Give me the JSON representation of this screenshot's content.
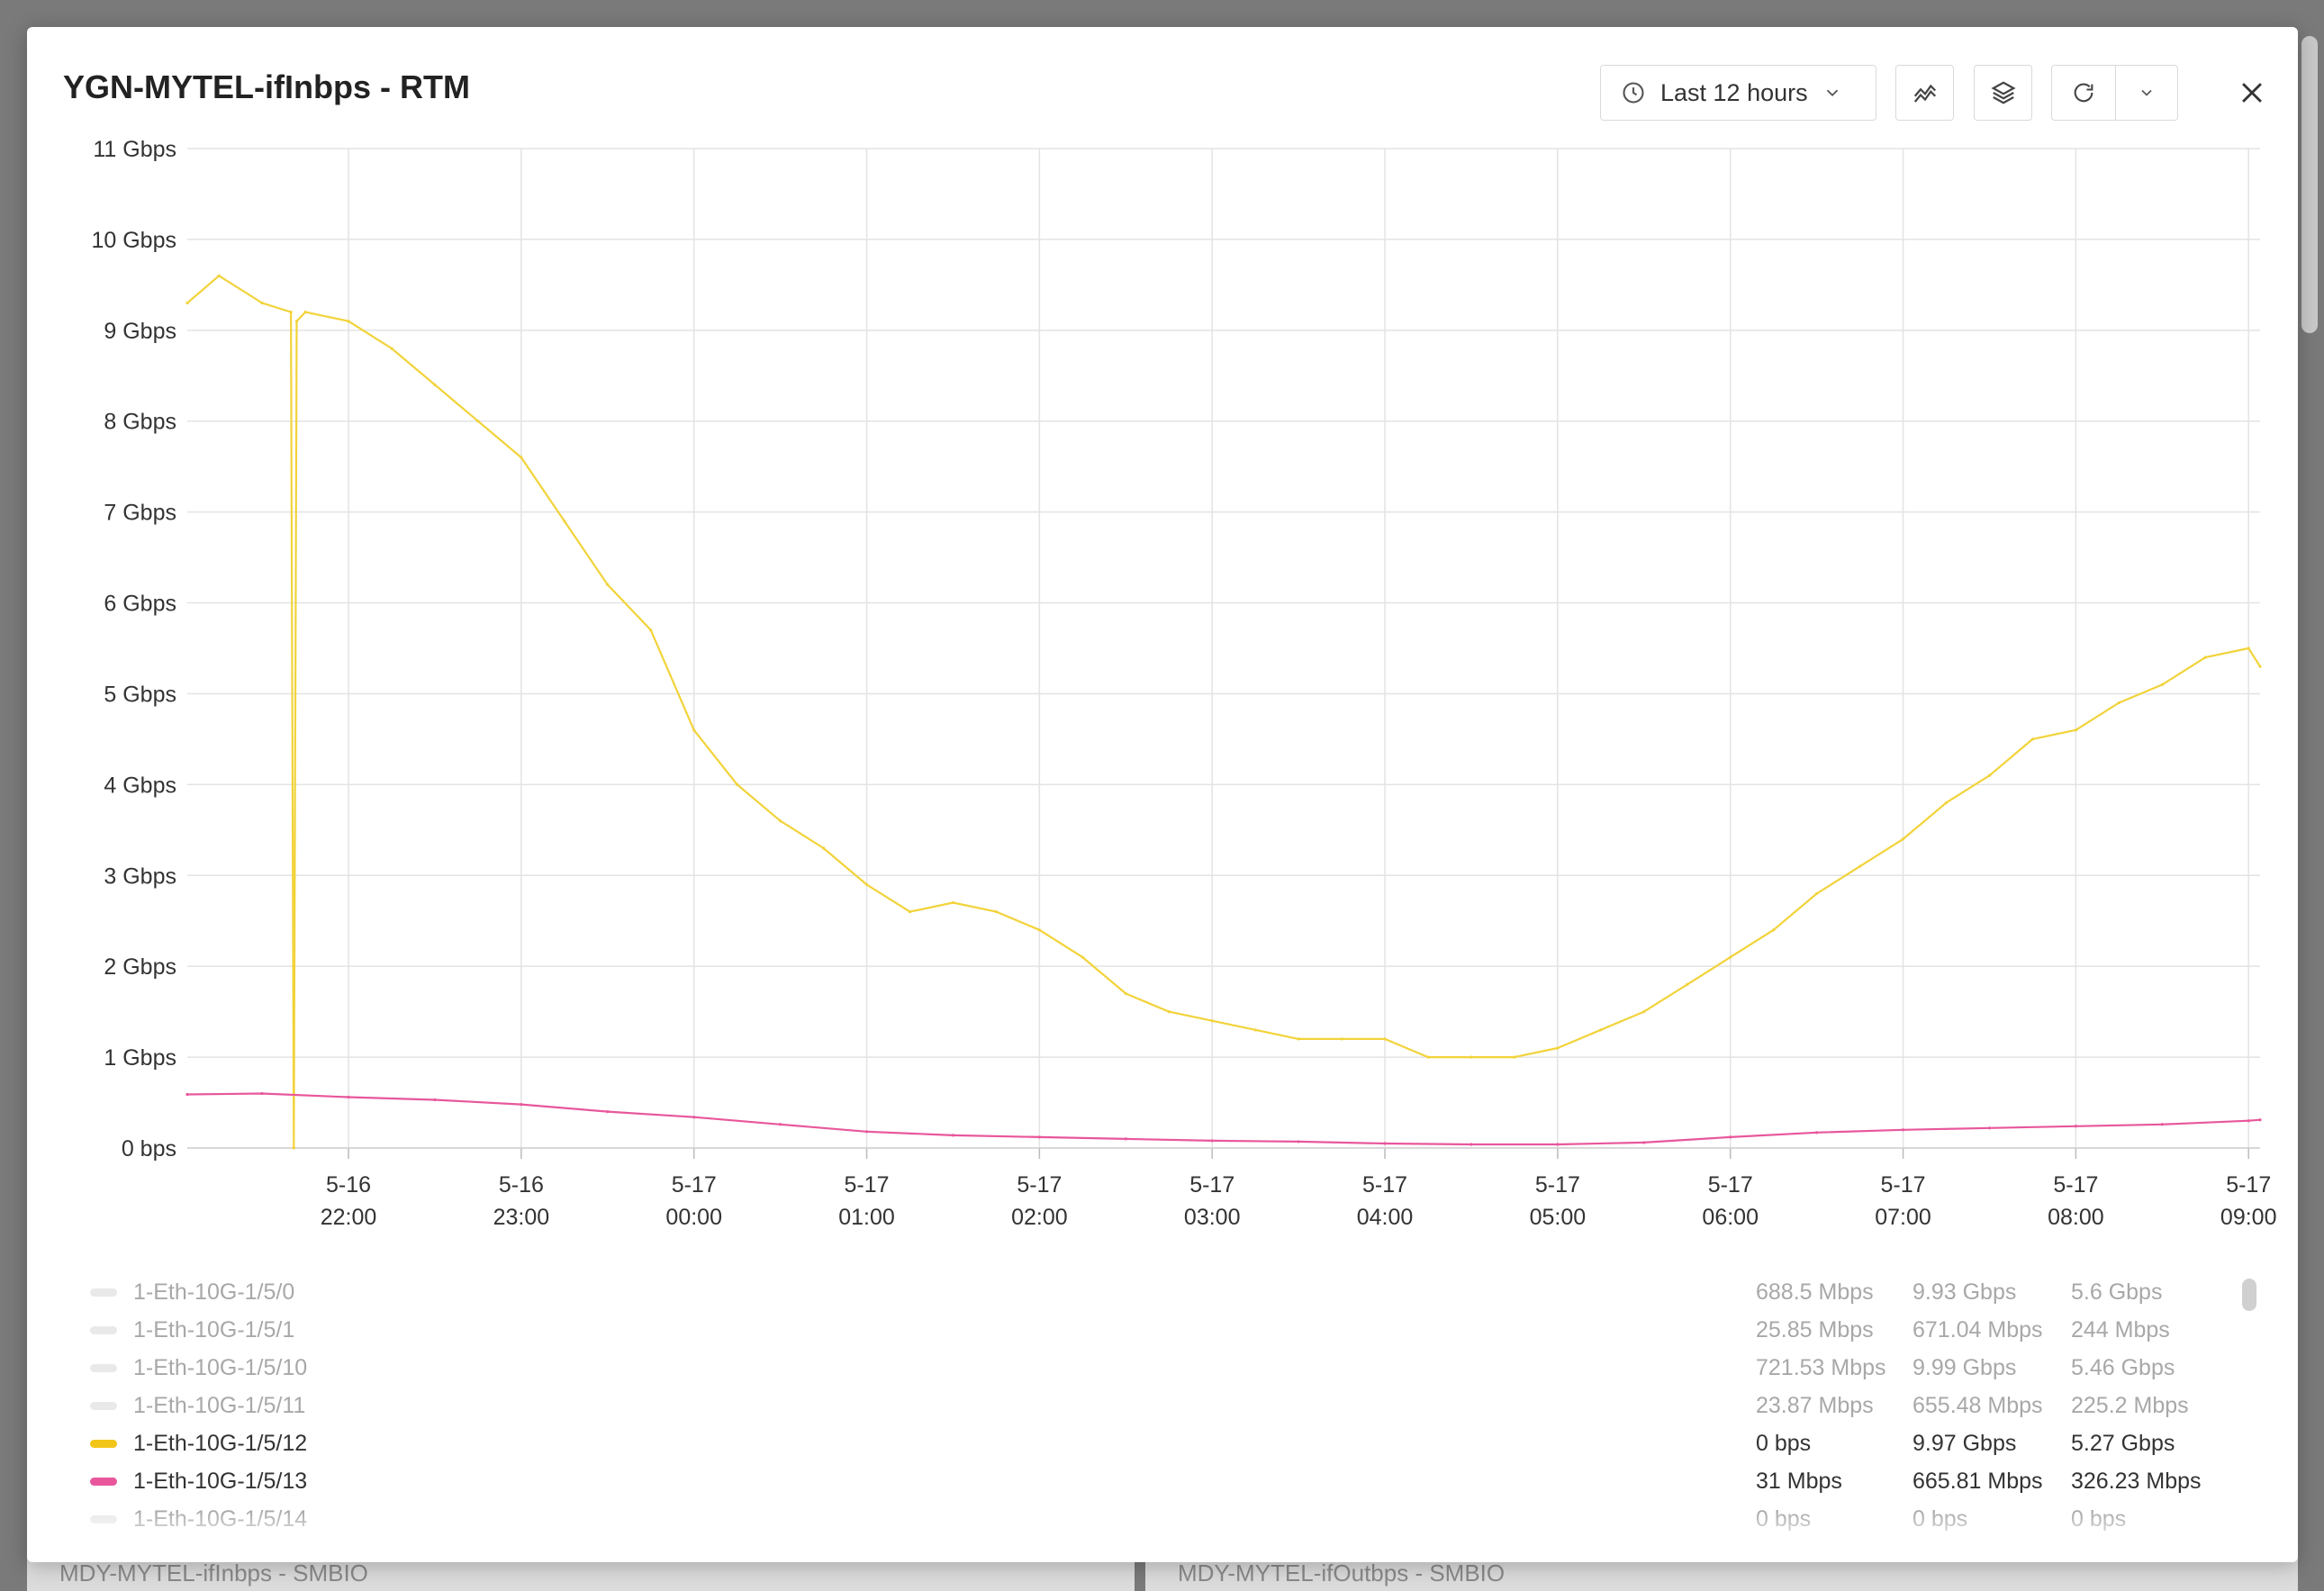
{
  "backdrop": {
    "left_title": "MDY-MYTEL-ifInbps - SMBIO",
    "right_title": "MDY-MYTEL-ifOutbps - SMBIO"
  },
  "modal": {
    "title": "YGN-MYTEL-ifInbps - RTM",
    "time_range_label": "Last 12 hours",
    "icons": {
      "time": "clock-icon",
      "dropdown": "chevron-down-icon",
      "chart_mode": "chart-compare-icon",
      "layers": "layers-icon",
      "refresh": "refresh-icon",
      "refresh_menu": "chevron-down-icon",
      "close": "close-icon"
    }
  },
  "chart_data": {
    "type": "line",
    "title": "",
    "xlabel": "",
    "ylabel": "",
    "ylim": [
      0,
      11
    ],
    "yunit": "Gbps",
    "y_ticks": [
      "0 bps",
      "1 Gbps",
      "2 Gbps",
      "3 Gbps",
      "4 Gbps",
      "5 Gbps",
      "6 Gbps",
      "7 Gbps",
      "8 Gbps",
      "9 Gbps",
      "10 Gbps",
      "11 Gbps"
    ],
    "x_range": [
      "5-16 21:04",
      "5-17 09:04"
    ],
    "x_ticks": [
      {
        "date": "5-16",
        "time": "22:00"
      },
      {
        "date": "5-16",
        "time": "23:00"
      },
      {
        "date": "5-17",
        "time": "00:00"
      },
      {
        "date": "5-17",
        "time": "01:00"
      },
      {
        "date": "5-17",
        "time": "02:00"
      },
      {
        "date": "5-17",
        "time": "03:00"
      },
      {
        "date": "5-17",
        "time": "04:00"
      },
      {
        "date": "5-17",
        "time": "05:00"
      },
      {
        "date": "5-17",
        "time": "06:00"
      },
      {
        "date": "5-17",
        "time": "07:00"
      },
      {
        "date": "5-17",
        "time": "08:00"
      },
      {
        "date": "5-17",
        "time": "09:00"
      }
    ],
    "grid": true,
    "legend_position": "bottom",
    "series": [
      {
        "name": "1-Eth-10G-1/5/12",
        "color": "#f2d33a",
        "x": [
          "5-16 21:04",
          "5-16 21:15",
          "5-16 21:30",
          "5-16 21:40",
          "5-16 21:41",
          "5-16 21:42",
          "5-16 21:45",
          "5-16 22:00",
          "5-16 22:15",
          "5-16 22:30",
          "5-16 22:45",
          "5-16 23:00",
          "5-16 23:15",
          "5-16 23:30",
          "5-16 23:45",
          "5-17 00:00",
          "5-17 00:15",
          "5-17 00:30",
          "5-17 00:45",
          "5-17 01:00",
          "5-17 01:15",
          "5-17 01:30",
          "5-17 01:45",
          "5-17 02:00",
          "5-17 02:15",
          "5-17 02:30",
          "5-17 02:45",
          "5-17 03:00",
          "5-17 03:15",
          "5-17 03:30",
          "5-17 03:45",
          "5-17 04:00",
          "5-17 04:15",
          "5-17 04:30",
          "5-17 04:45",
          "5-17 05:00",
          "5-17 05:15",
          "5-17 05:30",
          "5-17 05:45",
          "5-17 06:00",
          "5-17 06:15",
          "5-17 06:30",
          "5-17 06:45",
          "5-17 07:00",
          "5-17 07:15",
          "5-17 07:30",
          "5-17 07:45",
          "5-17 08:00",
          "5-17 08:15",
          "5-17 08:30",
          "5-17 08:45",
          "5-17 09:00",
          "5-17 09:04"
        ],
        "values": [
          9.3,
          9.6,
          9.3,
          9.2,
          0.0,
          9.1,
          9.2,
          9.1,
          8.8,
          8.4,
          8.0,
          7.6,
          6.9,
          6.2,
          5.7,
          4.6,
          4.0,
          3.6,
          3.3,
          2.9,
          2.6,
          2.7,
          2.6,
          2.4,
          2.1,
          1.7,
          1.5,
          1.4,
          1.3,
          1.2,
          1.2,
          1.2,
          1.0,
          1.0,
          1.0,
          1.1,
          1.3,
          1.5,
          1.8,
          2.1,
          2.4,
          2.8,
          3.1,
          3.4,
          3.8,
          4.1,
          4.5,
          4.6,
          4.9,
          5.1,
          5.4,
          5.5,
          5.3
        ]
      },
      {
        "name": "1-Eth-10G-1/5/13",
        "color": "#e8579c",
        "x": [
          "5-16 21:04",
          "5-16 21:30",
          "5-16 22:00",
          "5-16 22:30",
          "5-16 23:00",
          "5-16 23:30",
          "5-17 00:00",
          "5-17 00:30",
          "5-17 01:00",
          "5-17 01:30",
          "5-17 02:00",
          "5-17 02:30",
          "5-17 03:00",
          "5-17 03:30",
          "5-17 04:00",
          "5-17 04:30",
          "5-17 05:00",
          "5-17 05:30",
          "5-17 06:00",
          "5-17 06:30",
          "5-17 07:00",
          "5-17 07:30",
          "5-17 08:00",
          "5-17 08:30",
          "5-17 09:00",
          "5-17 09:04"
        ],
        "values": [
          0.59,
          0.6,
          0.56,
          0.53,
          0.48,
          0.4,
          0.34,
          0.26,
          0.18,
          0.14,
          0.12,
          0.1,
          0.08,
          0.07,
          0.05,
          0.04,
          0.04,
          0.06,
          0.12,
          0.17,
          0.2,
          0.22,
          0.24,
          0.26,
          0.3,
          0.31
        ]
      }
    ]
  },
  "legend": {
    "rows": [
      {
        "name": "1-Eth-10G-1/5/0",
        "v1": "688.5 Mbps",
        "v2": "9.93 Gbps",
        "v3": "5.6 Gbps",
        "color": "#e9e9e9",
        "active": false
      },
      {
        "name": "1-Eth-10G-1/5/1",
        "v1": "25.85 Mbps",
        "v2": "671.04 Mbps",
        "v3": "244 Mbps",
        "color": "#e9e9e9",
        "active": false
      },
      {
        "name": "1-Eth-10G-1/5/10",
        "v1": "721.53 Mbps",
        "v2": "9.99 Gbps",
        "v3": "5.46 Gbps",
        "color": "#e9e9e9",
        "active": false
      },
      {
        "name": "1-Eth-10G-1/5/11",
        "v1": "23.87 Mbps",
        "v2": "655.48 Mbps",
        "v3": "225.2 Mbps",
        "color": "#e9e9e9",
        "active": false
      },
      {
        "name": "1-Eth-10G-1/5/12",
        "v1": "0 bps",
        "v2": "9.97 Gbps",
        "v3": "5.27 Gbps",
        "color": "#f2c519",
        "active": true
      },
      {
        "name": "1-Eth-10G-1/5/13",
        "v1": "31 Mbps",
        "v2": "665.81 Mbps",
        "v3": "326.23 Mbps",
        "color": "#e8579c",
        "active": true
      },
      {
        "name": "1-Eth-10G-1/5/14",
        "v1": "0 bps",
        "v2": "0 bps",
        "v3": "0 bps",
        "color": "#e9e9e9",
        "active": false
      }
    ]
  }
}
